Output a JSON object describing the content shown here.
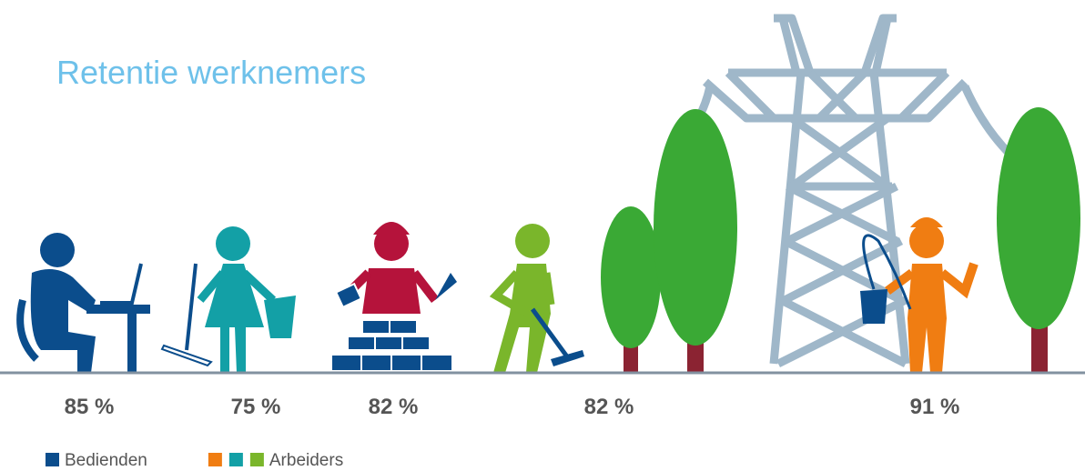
{
  "title": "Retentie werknemers",
  "items": [
    {
      "label": "85 %",
      "color": "#0b4d8c"
    },
    {
      "label": "75 %",
      "color": "#13a0a6"
    },
    {
      "label": "82 %",
      "color": "#b5133b"
    },
    {
      "label": "82 %",
      "color": "#7ab62b"
    },
    {
      "label": "91 %",
      "color": "#f07d12"
    }
  ],
  "legend": [
    {
      "label": "Bedienden",
      "colors": [
        "#0b4d8c"
      ]
    },
    {
      "label": "Arbeiders",
      "colors": [
        "#f07d12",
        "#13a0a6",
        "#7ab62b"
      ]
    }
  ]
}
